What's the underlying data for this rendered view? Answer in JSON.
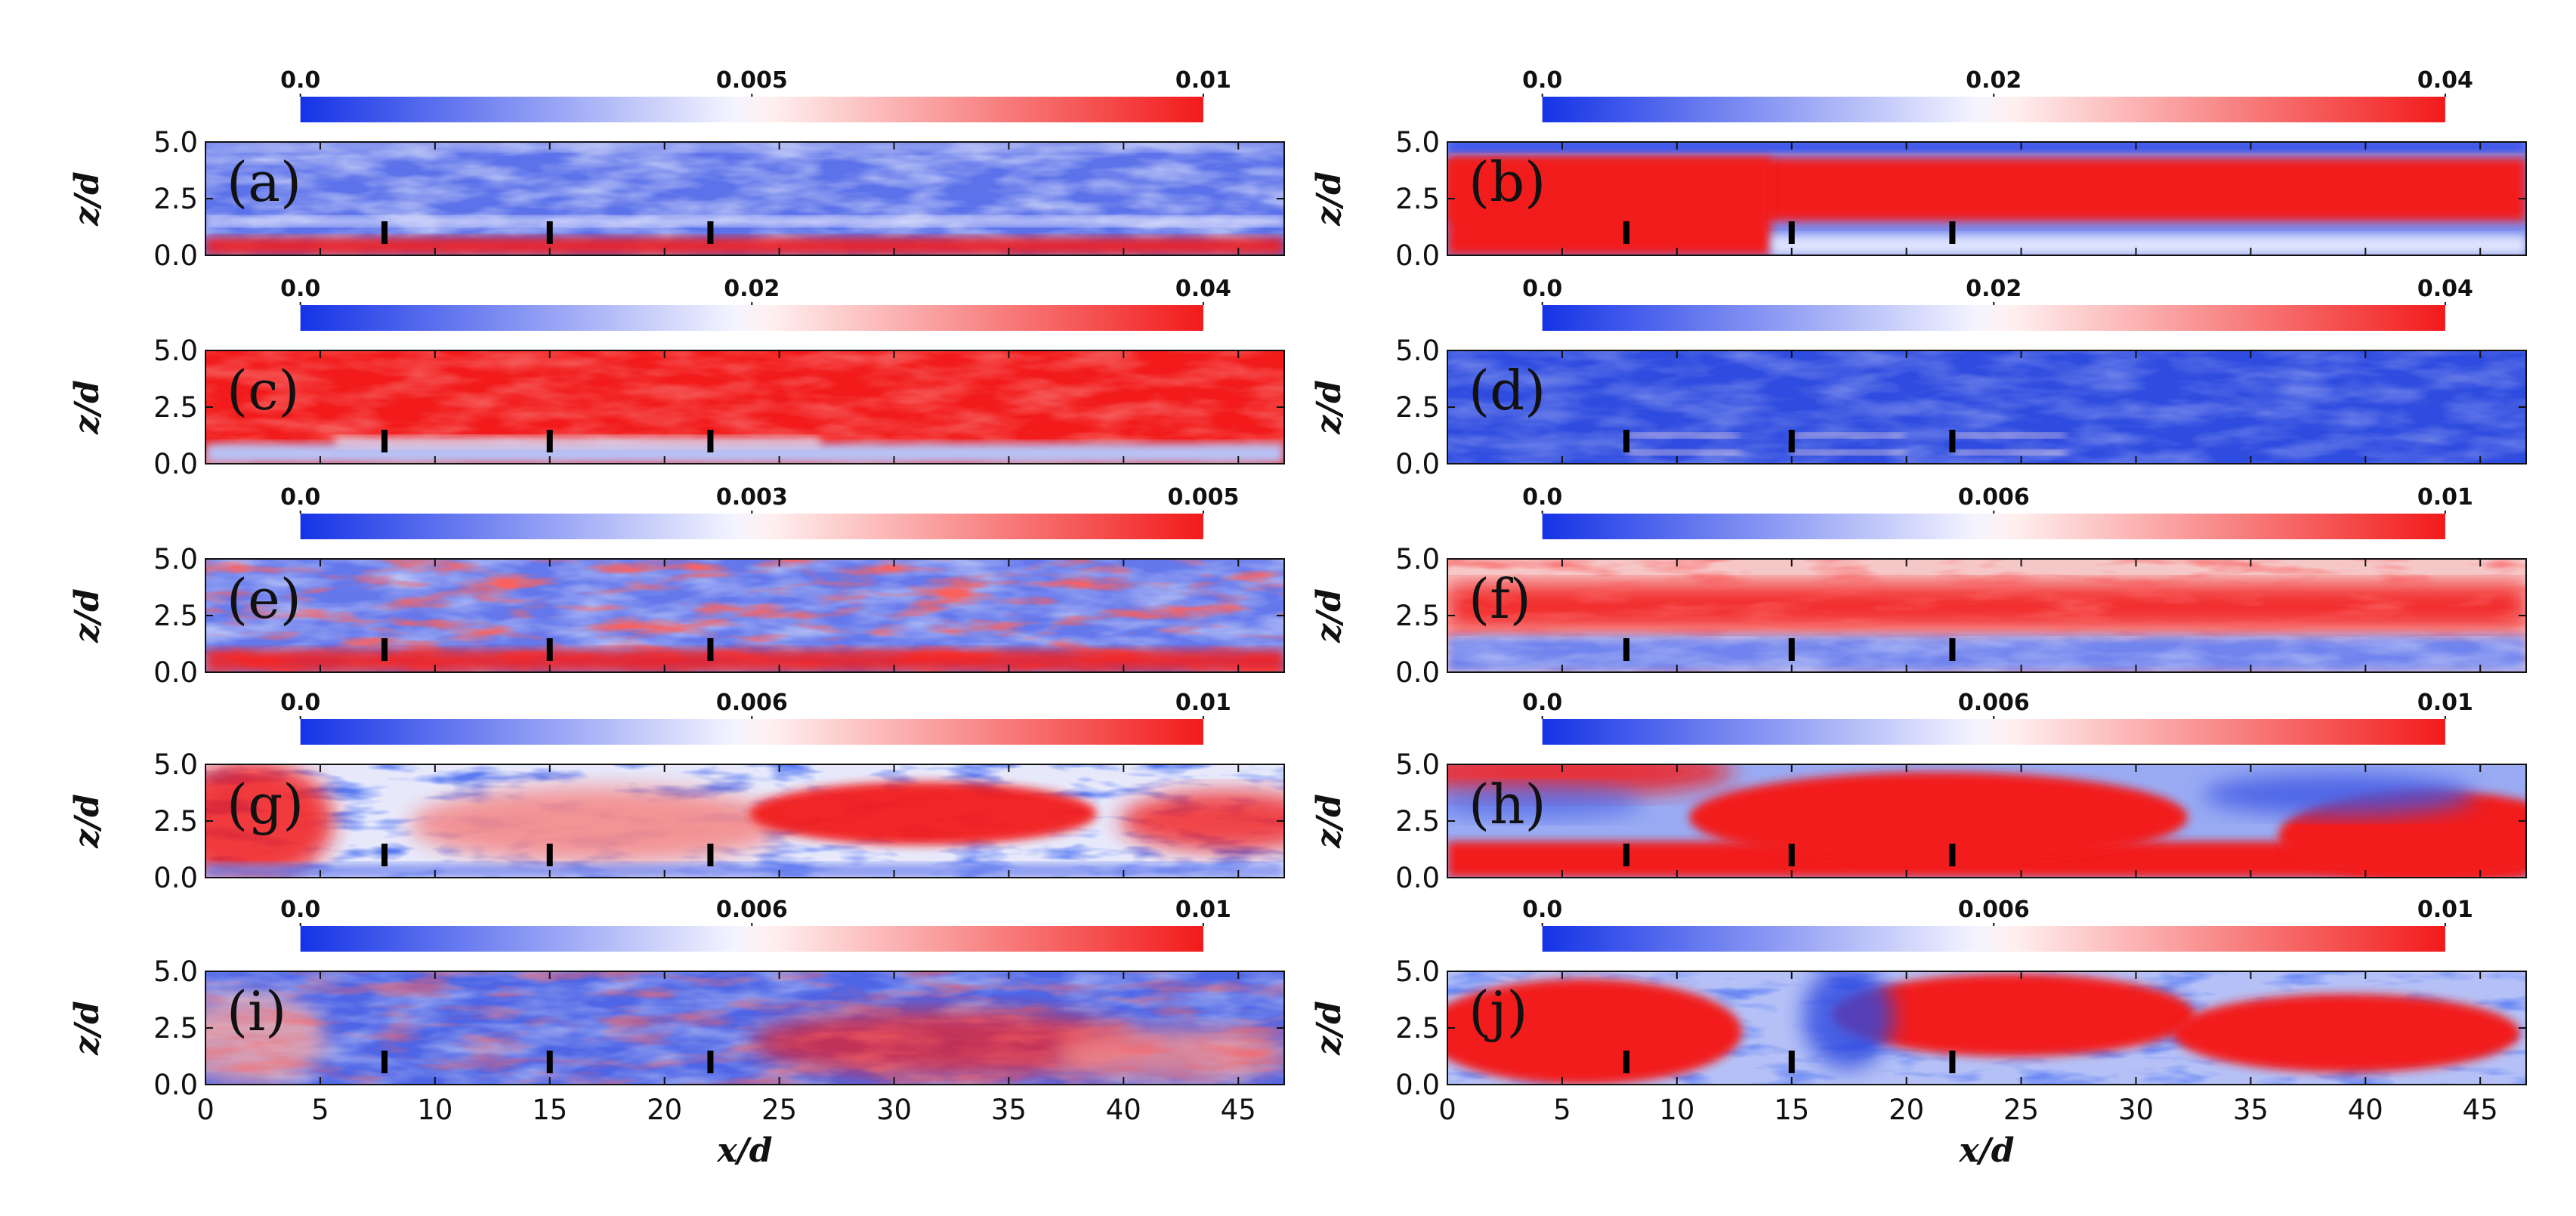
{
  "chart_data": {
    "type": "heatmap",
    "layout": "5 rows x 2 columns of contour panels",
    "colormap": [
      "#1533e6",
      "#ffffff",
      "#f21a1a"
    ],
    "xlabel": "x/d",
    "ylabel": "z/d",
    "xlim": [
      0,
      47
    ],
    "ylim": [
      0,
      5
    ],
    "x_ticks": [
      "0",
      "5",
      "10",
      "15",
      "20",
      "25",
      "30",
      "35",
      "40",
      "45"
    ],
    "y_ticks": [
      "0.0",
      "2.5",
      "5.0"
    ],
    "turbine_positions_x": [
      7.8,
      15,
      22
    ],
    "turbine_z_range": [
      0.5,
      1.5
    ],
    "panels": [
      {
        "label": "(a)",
        "colorbar": {
          "min": "0.0",
          "mid": "0.005",
          "max": "0.01"
        },
        "pattern": "noisy-low"
      },
      {
        "label": "(b)",
        "colorbar": {
          "min": "0.0",
          "mid": "0.02",
          "max": "0.04"
        },
        "pattern": "band-high"
      },
      {
        "label": "(c)",
        "colorbar": {
          "min": "0.0",
          "mid": "0.02",
          "max": "0.04"
        },
        "pattern": "upper-high"
      },
      {
        "label": "(d)",
        "colorbar": {
          "min": "0.0",
          "mid": "0.02",
          "max": "0.04"
        },
        "pattern": "low-with-wakes"
      },
      {
        "label": "(e)",
        "colorbar": {
          "min": "0.0",
          "mid": "0.003",
          "max": "0.005"
        },
        "pattern": "noisy-mixed"
      },
      {
        "label": "(f)",
        "colorbar": {
          "min": "0.0",
          "mid": "0.006",
          "max": "0.01"
        },
        "pattern": "upper-mixed"
      },
      {
        "label": "(g)",
        "colorbar": {
          "min": "0.0",
          "mid": "0.006",
          "max": "0.01"
        },
        "pattern": "blobs-medium"
      },
      {
        "label": "(h)",
        "colorbar": {
          "min": "0.0",
          "mid": "0.006",
          "max": "0.01"
        },
        "pattern": "blobs-strong"
      },
      {
        "label": "(i)",
        "colorbar": {
          "min": "0.0",
          "mid": "0.006",
          "max": "0.01"
        },
        "pattern": "blobs-weak"
      },
      {
        "label": "(j)",
        "colorbar": {
          "min": "0.0",
          "mid": "0.006",
          "max": "0.01"
        },
        "pattern": "blobs-periodic"
      }
    ]
  }
}
